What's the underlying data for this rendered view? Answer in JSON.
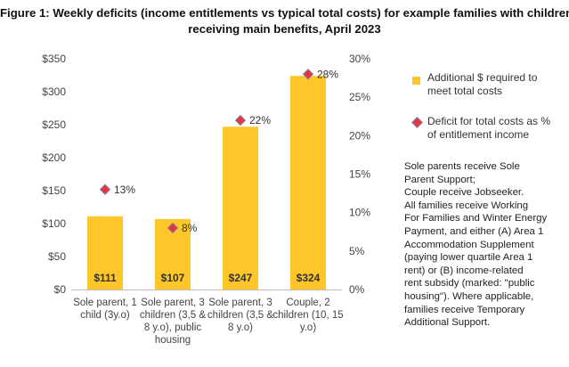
{
  "figure": {
    "title_lines": [
      "Figure 1: Weekly deficits (income entitlements vs typical total costs) for example families with children,",
      "receiving main benefits, April 2023"
    ]
  },
  "chart_data": {
    "type": "bar",
    "categories": [
      [
        "Sole parent, 1",
        "child (3y.o)"
      ],
      [
        "Sole parent, 3",
        "children (3,5 &",
        "8 y.o), public",
        "housing"
      ],
      [
        "Sole parent, 3",
        "children (3,5 &",
        "8 y.o)"
      ],
      [
        "Couple, 2",
        "children (10, 15",
        "y.o)"
      ]
    ],
    "series": [
      {
        "name": "Additional $ required to meet total costs",
        "axis": "left",
        "values": [
          111,
          107,
          247,
          324
        ],
        "value_labels": [
          "$111",
          "$107",
          "$247",
          "$324"
        ],
        "color": "#FFC629"
      },
      {
        "name": "Deficit for total costs as % of entitlement income",
        "axis": "right",
        "marker": "diamond",
        "values": [
          13,
          8,
          22,
          28
        ],
        "value_labels": [
          "13%",
          "8%",
          "22%",
          "28%"
        ],
        "color": "#E8353A"
      }
    ],
    "y_left": {
      "min": 0,
      "max": 350,
      "ticks": [
        0,
        50,
        100,
        150,
        200,
        250,
        300,
        350
      ],
      "tick_labels": [
        "$0",
        "$50",
        "$100",
        "$150",
        "$200",
        "$250",
        "$300",
        "$350"
      ]
    },
    "y_right": {
      "min": 0,
      "max": 30,
      "ticks": [
        0,
        5,
        10,
        15,
        20,
        25,
        30
      ],
      "tick_labels": [
        "0%",
        "5%",
        "10%",
        "15%",
        "20%",
        "25%",
        "30%"
      ]
    },
    "grid": false,
    "legend_position": "right"
  },
  "legend": [
    {
      "lines": [
        "Additional $ required to",
        "meet total costs"
      ]
    },
    {
      "lines": [
        "Deficit for total costs as %",
        "of entitlement income"
      ]
    }
  ],
  "note_lines": [
    "Sole parents receive Sole",
    "Parent Support;",
    "Couple receive Jobseeker.",
    "All families receive Working",
    "For Families and Winter Energy",
    "Payment, and either (A) Area 1",
    "Accommodation Supplement",
    "(paying lower quartile Area 1",
    "rent) or (B) income-related",
    "rent subsidy (marked: \"public",
    "housing\"). Where applicable,",
    "families receive Temporary",
    "Additional Support."
  ]
}
